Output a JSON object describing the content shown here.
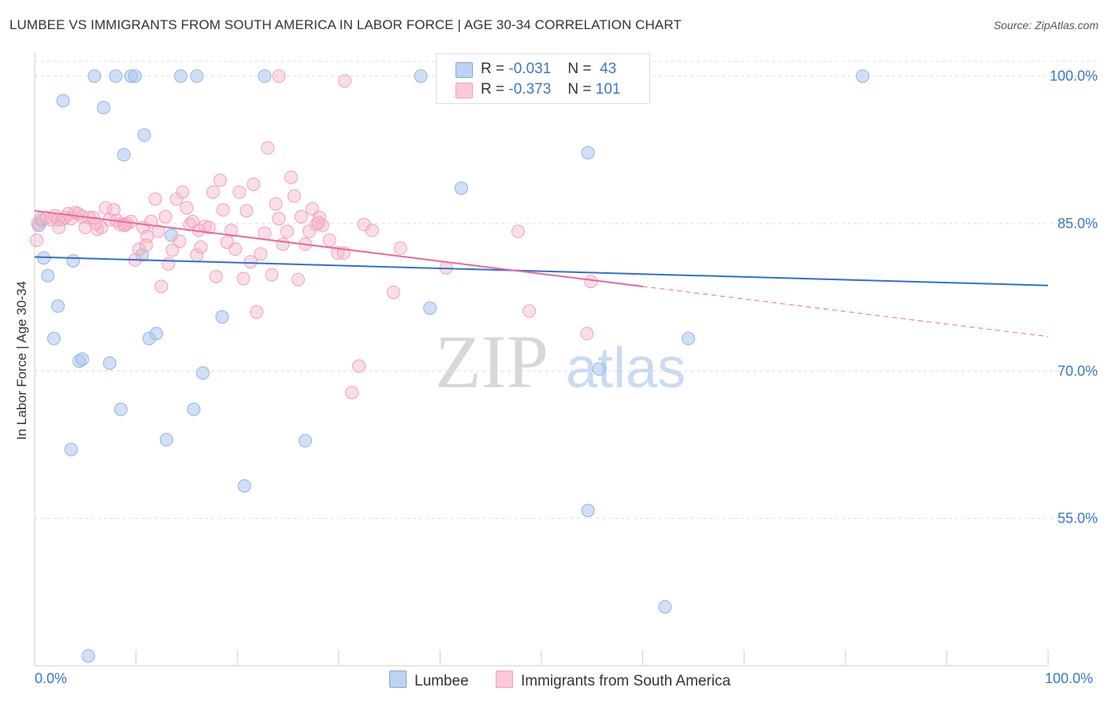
{
  "header": {
    "title": "LUMBEE VS IMMIGRANTS FROM SOUTH AMERICA IN LABOR FORCE | AGE 30-34 CORRELATION CHART",
    "source": "Source: ZipAtlas.com"
  },
  "watermark": {
    "zip": "ZIP",
    "atlas": "atlas"
  },
  "legend": {
    "rows": [
      {
        "r_label": "R =",
        "r_value": "-0.031",
        "n_label": "N =",
        "n_value": "43"
      },
      {
        "r_label": "R =",
        "r_value": "-0.373",
        "n_label": "N =",
        "n_value": "101"
      }
    ]
  },
  "chart_data": {
    "type": "scatter",
    "title": "LUMBEE VS IMMIGRANTS FROM SOUTH AMERICA IN LABOR FORCE | AGE 30-34 CORRELATION CHART",
    "xlabel": "",
    "ylabel": "In Labor Force | Age 30-34",
    "x_tick_labels": [
      "0.0%",
      "100.0%"
    ],
    "y_tick_labels": [
      "100.0%",
      "85.0%",
      "70.0%",
      "55.0%"
    ],
    "y_ticks": [
      100,
      85,
      70,
      55
    ],
    "xlim": [
      0,
      100
    ],
    "ylim": [
      40,
      101.5
    ],
    "grid": true,
    "legend_position": "bottom",
    "colors": {
      "lumbee": "#a9c7ee",
      "lumbee_line": "#2f6fd0",
      "immigrants": "#f5b5c8",
      "immigrants_line": "#e8689a",
      "axis_text": "#3a78c3"
    },
    "series": [
      {
        "name": "Lumbee",
        "r": -0.031,
        "n": 43,
        "trend": {
          "x": [
            0,
            100
          ],
          "y": [
            81.6,
            78.7
          ]
        },
        "points": [
          [
            0.7,
            85.3
          ],
          [
            0.9,
            81.5
          ],
          [
            1.3,
            79.7
          ],
          [
            1.9,
            73.3
          ],
          [
            2.3,
            76.6
          ],
          [
            2.8,
            97.5
          ],
          [
            3.6,
            62.0
          ],
          [
            3.8,
            81.2
          ],
          [
            4.4,
            71.0
          ],
          [
            4.7,
            71.2
          ],
          [
            5.3,
            41.0
          ],
          [
            5.9,
            100.0
          ],
          [
            6.8,
            96.8
          ],
          [
            7.4,
            70.8
          ],
          [
            8.0,
            100.0
          ],
          [
            8.5,
            66.1
          ],
          [
            8.8,
            92.0
          ],
          [
            9.5,
            100.0
          ],
          [
            9.9,
            100.0
          ],
          [
            10.6,
            81.8
          ],
          [
            10.8,
            94.0
          ],
          [
            11.3,
            73.3
          ],
          [
            12.0,
            73.8
          ],
          [
            13.0,
            63.0
          ],
          [
            13.5,
            83.8
          ],
          [
            14.4,
            100.0
          ],
          [
            15.7,
            66.1
          ],
          [
            16.0,
            100.0
          ],
          [
            16.6,
            69.8
          ],
          [
            18.5,
            75.5
          ],
          [
            20.7,
            58.3
          ],
          [
            22.7,
            100.0
          ],
          [
            26.7,
            62.9
          ],
          [
            38.1,
            100.0
          ],
          [
            39.0,
            76.4
          ],
          [
            42.1,
            88.6
          ],
          [
            54.6,
            92.2
          ],
          [
            55.7,
            70.2
          ],
          [
            54.6,
            55.8
          ],
          [
            62.2,
            46.0
          ],
          [
            64.5,
            73.3
          ],
          [
            81.7,
            100.0
          ],
          [
            0.4,
            84.8
          ]
        ]
      },
      {
        "name": "Immigrants from South America",
        "r": -0.373,
        "n": 101,
        "trend": {
          "x": [
            0,
            60
          ],
          "y": [
            86.3,
            78.6
          ]
        },
        "trend_dashed": {
          "x": [
            60,
            100
          ],
          "y": [
            78.6,
            73.5
          ]
        },
        "points": [
          [
            0.3,
            85.0
          ],
          [
            0.6,
            85.5
          ],
          [
            1.2,
            85.6
          ],
          [
            1.6,
            85.4
          ],
          [
            2.0,
            85.8
          ],
          [
            2.3,
            85.4
          ],
          [
            2.7,
            85.4
          ],
          [
            3.0,
            85.6
          ],
          [
            3.3,
            86.0
          ],
          [
            3.6,
            85.5
          ],
          [
            4.0,
            86.1
          ],
          [
            4.3,
            86.0
          ],
          [
            4.7,
            85.7
          ],
          [
            5.0,
            84.6
          ],
          [
            5.4,
            85.6
          ],
          [
            5.8,
            85.6
          ],
          [
            6.2,
            84.4
          ],
          [
            6.6,
            84.6
          ],
          [
            7.0,
            86.6
          ],
          [
            7.4,
            85.4
          ],
          [
            7.8,
            86.4
          ],
          [
            8.1,
            85.3
          ],
          [
            8.4,
            84.9
          ],
          [
            8.8,
            84.9
          ],
          [
            9.1,
            85.0
          ],
          [
            9.5,
            85.2
          ],
          [
            9.9,
            81.3
          ],
          [
            10.3,
            82.4
          ],
          [
            10.7,
            84.6
          ],
          [
            11.1,
            83.7
          ],
          [
            11.5,
            85.2
          ],
          [
            11.9,
            87.5
          ],
          [
            12.2,
            84.2
          ],
          [
            12.5,
            78.6
          ],
          [
            12.9,
            85.7
          ],
          [
            13.2,
            80.9
          ],
          [
            13.6,
            82.3
          ],
          [
            14.0,
            87.5
          ],
          [
            14.3,
            83.2
          ],
          [
            14.6,
            88.2
          ],
          [
            15.0,
            86.6
          ],
          [
            15.3,
            84.9
          ],
          [
            15.6,
            85.2
          ],
          [
            16.0,
            81.8
          ],
          [
            16.4,
            82.6
          ],
          [
            16.8,
            84.7
          ],
          [
            17.2,
            84.6
          ],
          [
            17.6,
            88.2
          ],
          [
            17.9,
            79.6
          ],
          [
            18.3,
            89.4
          ],
          [
            18.6,
            86.4
          ],
          [
            19.0,
            83.1
          ],
          [
            19.4,
            84.3
          ],
          [
            19.8,
            82.4
          ],
          [
            20.2,
            88.2
          ],
          [
            20.6,
            79.4
          ],
          [
            20.9,
            86.3
          ],
          [
            21.3,
            81.1
          ],
          [
            21.6,
            89.0
          ],
          [
            21.9,
            76.0
          ],
          [
            22.3,
            81.9
          ],
          [
            22.7,
            84.0
          ],
          [
            23.0,
            92.7
          ],
          [
            23.4,
            79.8
          ],
          [
            23.8,
            87.0
          ],
          [
            24.1,
            85.5
          ],
          [
            24.5,
            82.9
          ],
          [
            24.9,
            84.2
          ],
          [
            25.3,
            89.7
          ],
          [
            25.6,
            87.8
          ],
          [
            26.0,
            79.3
          ],
          [
            26.3,
            85.7
          ],
          [
            26.7,
            82.9
          ],
          [
            27.1,
            84.2
          ],
          [
            27.4,
            86.5
          ],
          [
            27.8,
            84.9
          ],
          [
            28.1,
            85.6
          ],
          [
            28.4,
            84.8
          ],
          [
            29.9,
            82.0
          ],
          [
            30.5,
            82.0
          ],
          [
            29.1,
            83.3
          ],
          [
            28.0,
            85.1
          ],
          [
            24.1,
            100.0
          ],
          [
            30.6,
            99.5
          ],
          [
            31.3,
            67.8
          ],
          [
            32.0,
            70.5
          ],
          [
            32.5,
            84.9
          ],
          [
            33.3,
            84.3
          ],
          [
            35.4,
            78.0
          ],
          [
            36.1,
            82.5
          ],
          [
            40.6,
            80.5
          ],
          [
            47.7,
            84.2
          ],
          [
            48.8,
            76.1
          ],
          [
            54.5,
            73.8
          ],
          [
            54.9,
            79.1
          ],
          [
            0.2,
            83.3
          ],
          [
            2.4,
            84.6
          ],
          [
            6.0,
            85.0
          ],
          [
            8.9,
            84.8
          ],
          [
            11.0,
            82.8
          ],
          [
            16.2,
            84.3
          ]
        ]
      }
    ]
  },
  "axis": {
    "x_left": "0.0%",
    "x_right": "100.0%"
  },
  "bottom_legend": {
    "lumbee": "Lumbee",
    "immigrants": "Immigrants from South America"
  }
}
